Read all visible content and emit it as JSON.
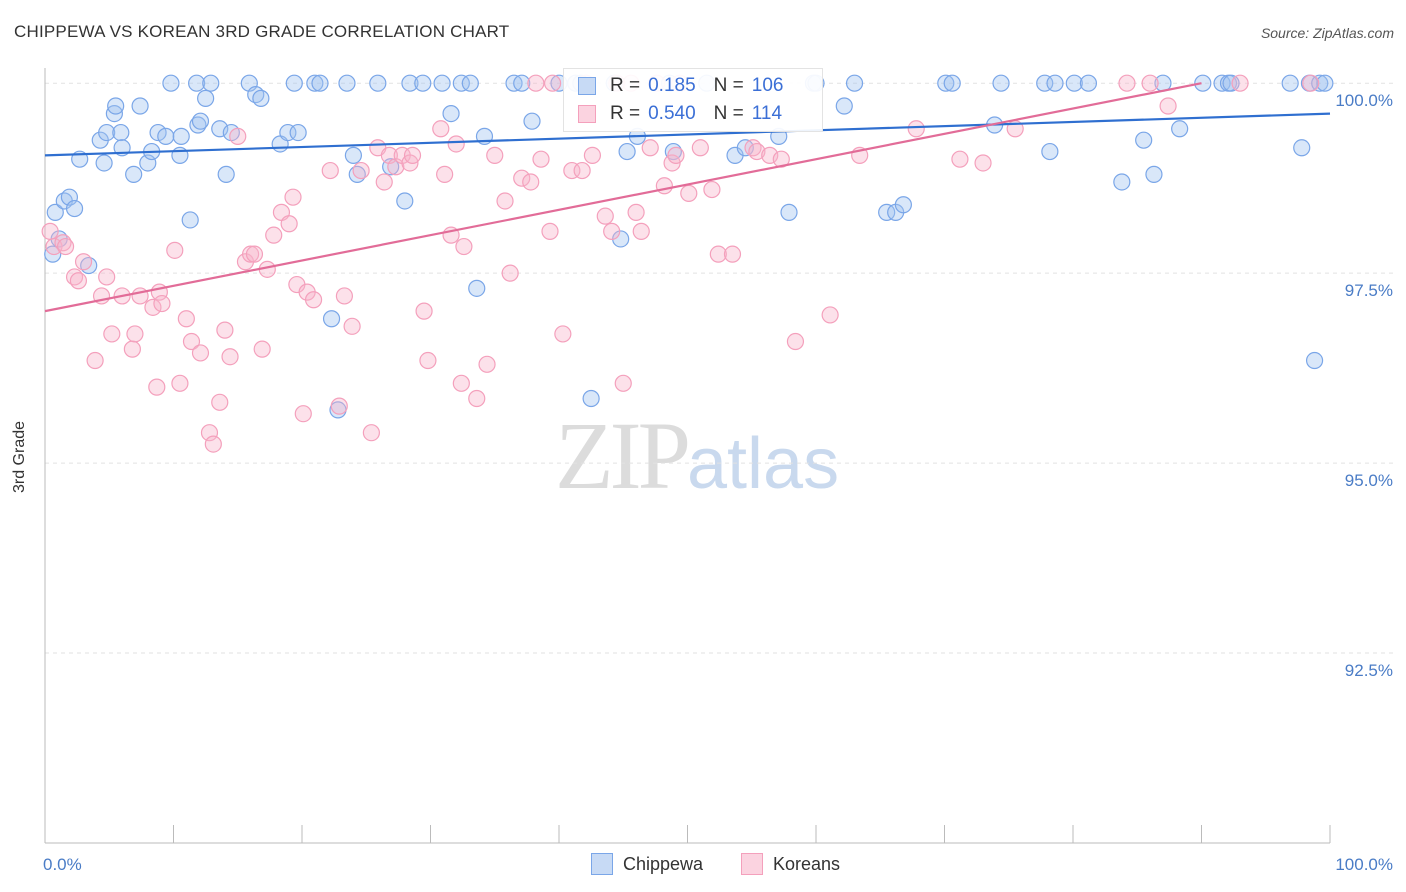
{
  "header": {
    "title": "CHIPPEWA VS KOREAN 3RD GRADE CORRELATION CHART",
    "source": "Source: ZipAtlas.com"
  },
  "watermark": {
    "zip": "ZIP",
    "atlas": "atlas"
  },
  "legend": {
    "r_label": "R =",
    "n_label": "N =",
    "rows": [
      {
        "r": "0.185",
        "n": "106",
        "color": "#7aa6e8"
      },
      {
        "r": "0.540",
        "n": "114",
        "color": "#f4a0bc"
      }
    ]
  },
  "bottom_legend": [
    {
      "label": "Chippewa",
      "color": "#7aa6e8"
    },
    {
      "label": "Koreans",
      "color": "#f4a0bc"
    }
  ],
  "chart_data": {
    "type": "scatter",
    "title": "CHIPPEWA VS KOREAN 3RD GRADE CORRELATION CHART",
    "xlabel": "",
    "ylabel": "3rd Grade",
    "x_tick_labels": [
      "0.0%",
      "100.0%"
    ],
    "y_tick_labels": [
      "100.0%",
      "97.5%",
      "95.0%",
      "92.5%"
    ],
    "y_ticks": [
      100.0,
      97.5,
      95.0,
      92.5
    ],
    "xlim": [
      0,
      100
    ],
    "ylim": [
      90.0,
      100.2
    ],
    "grid": true,
    "series": [
      {
        "name": "Chippewa",
        "color": "#7aa6e8",
        "trend": {
          "x": [
            0,
            100
          ],
          "y": [
            99.05,
            99.6
          ]
        },
        "points": [
          [
            0.6,
            97.75
          ],
          [
            0.8,
            98.3
          ],
          [
            1.1,
            97.95
          ],
          [
            1.5,
            98.45
          ],
          [
            1.9,
            98.5
          ],
          [
            2.3,
            98.35
          ],
          [
            2.7,
            99.0
          ],
          [
            3.4,
            97.6
          ],
          [
            4.3,
            99.25
          ],
          [
            4.6,
            98.95
          ],
          [
            4.8,
            99.35
          ],
          [
            5.4,
            99.6
          ],
          [
            5.5,
            99.7
          ],
          [
            5.9,
            99.35
          ],
          [
            6.0,
            99.15
          ],
          [
            6.9,
            98.8
          ],
          [
            7.4,
            99.7
          ],
          [
            8.0,
            98.95
          ],
          [
            8.3,
            99.1
          ],
          [
            8.8,
            99.35
          ],
          [
            9.4,
            99.3
          ],
          [
            9.8,
            100.0
          ],
          [
            10.5,
            99.05
          ],
          [
            10.6,
            99.3
          ],
          [
            11.3,
            98.2
          ],
          [
            11.8,
            100.0
          ],
          [
            11.9,
            99.45
          ],
          [
            12.1,
            99.5
          ],
          [
            12.5,
            99.8
          ],
          [
            12.9,
            100.0
          ],
          [
            13.6,
            99.4
          ],
          [
            14.1,
            98.8
          ],
          [
            14.5,
            99.35
          ],
          [
            15.9,
            100.0
          ],
          [
            16.4,
            99.85
          ],
          [
            16.8,
            99.8
          ],
          [
            18.3,
            99.2
          ],
          [
            18.9,
            99.35
          ],
          [
            19.4,
            100.0
          ],
          [
            19.7,
            99.35
          ],
          [
            21.0,
            100.0
          ],
          [
            21.4,
            100.0
          ],
          [
            22.3,
            96.9
          ],
          [
            22.8,
            95.7
          ],
          [
            23.5,
            100.0
          ],
          [
            24.0,
            99.05
          ],
          [
            24.3,
            98.8
          ],
          [
            25.9,
            100.0
          ],
          [
            26.9,
            98.9
          ],
          [
            28.0,
            98.45
          ],
          [
            28.4,
            100.0
          ],
          [
            29.4,
            100.0
          ],
          [
            30.9,
            100.0
          ],
          [
            31.6,
            99.6
          ],
          [
            32.4,
            100.0
          ],
          [
            33.1,
            100.0
          ],
          [
            33.6,
            97.3
          ],
          [
            34.2,
            99.3
          ],
          [
            36.5,
            100.0
          ],
          [
            37.1,
            100.0
          ],
          [
            37.9,
            99.5
          ],
          [
            40.0,
            100.0
          ],
          [
            41.3,
            100.0
          ],
          [
            41.7,
            100.0
          ],
          [
            42.5,
            95.85
          ],
          [
            44.3,
            100.0
          ],
          [
            44.8,
            97.95
          ],
          [
            45.3,
            99.1
          ],
          [
            46.1,
            99.3
          ],
          [
            48.6,
            100.0
          ],
          [
            48.9,
            99.1
          ],
          [
            51.5,
            100.0
          ],
          [
            53.7,
            99.05
          ],
          [
            54.5,
            99.15
          ],
          [
            57.1,
            99.3
          ],
          [
            57.9,
            98.3
          ],
          [
            59.8,
            100.0
          ],
          [
            60.0,
            100.0
          ],
          [
            62.2,
            99.7
          ],
          [
            63.0,
            100.0
          ],
          [
            65.5,
            98.3
          ],
          [
            66.2,
            98.3
          ],
          [
            66.8,
            98.4
          ],
          [
            70.1,
            100.0
          ],
          [
            70.6,
            100.0
          ],
          [
            73.9,
            99.45
          ],
          [
            74.4,
            100.0
          ],
          [
            77.8,
            100.0
          ],
          [
            78.2,
            99.1
          ],
          [
            78.6,
            100.0
          ],
          [
            80.1,
            100.0
          ],
          [
            81.2,
            100.0
          ],
          [
            83.8,
            98.7
          ],
          [
            85.5,
            99.25
          ],
          [
            86.3,
            98.8
          ],
          [
            87.0,
            100.0
          ],
          [
            88.3,
            99.4
          ],
          [
            90.1,
            100.0
          ],
          [
            91.6,
            100.0
          ],
          [
            92.1,
            100.0
          ],
          [
            92.3,
            100.0
          ],
          [
            96.9,
            100.0
          ],
          [
            97.8,
            99.15
          ],
          [
            98.4,
            100.0
          ],
          [
            98.8,
            96.35
          ],
          [
            99.2,
            100.0
          ],
          [
            99.6,
            100.0
          ]
        ]
      },
      {
        "name": "Koreans",
        "color": "#f4a0bc",
        "trend": {
          "x": [
            0,
            90
          ],
          "y": [
            97.0,
            100.0
          ]
        },
        "points": [
          [
            0.4,
            98.05
          ],
          [
            0.7,
            97.85
          ],
          [
            1.4,
            97.9
          ],
          [
            1.6,
            97.85
          ],
          [
            2.3,
            97.45
          ],
          [
            2.6,
            97.4
          ],
          [
            3.0,
            97.65
          ],
          [
            3.9,
            96.35
          ],
          [
            4.4,
            97.2
          ],
          [
            4.8,
            97.45
          ],
          [
            5.2,
            96.7
          ],
          [
            6.0,
            97.2
          ],
          [
            6.8,
            96.5
          ],
          [
            7.0,
            96.7
          ],
          [
            7.4,
            97.2
          ],
          [
            8.4,
            97.05
          ],
          [
            8.7,
            96.0
          ],
          [
            8.9,
            97.25
          ],
          [
            9.1,
            97.1
          ],
          [
            10.1,
            97.8
          ],
          [
            10.5,
            96.05
          ],
          [
            11.0,
            96.9
          ],
          [
            11.4,
            96.6
          ],
          [
            12.1,
            96.45
          ],
          [
            12.8,
            95.4
          ],
          [
            13.1,
            95.25
          ],
          [
            13.6,
            95.8
          ],
          [
            14.0,
            96.75
          ],
          [
            14.4,
            96.4
          ],
          [
            15.0,
            99.3
          ],
          [
            15.6,
            97.65
          ],
          [
            16.0,
            97.75
          ],
          [
            16.3,
            97.75
          ],
          [
            16.9,
            96.5
          ],
          [
            17.3,
            97.55
          ],
          [
            17.8,
            98.0
          ],
          [
            18.4,
            98.3
          ],
          [
            19.0,
            98.15
          ],
          [
            19.3,
            98.5
          ],
          [
            19.6,
            97.35
          ],
          [
            20.1,
            95.65
          ],
          [
            20.4,
            97.25
          ],
          [
            20.9,
            97.15
          ],
          [
            22.2,
            98.85
          ],
          [
            22.9,
            95.75
          ],
          [
            23.3,
            97.2
          ],
          [
            23.9,
            96.8
          ],
          [
            24.6,
            98.85
          ],
          [
            25.4,
            95.4
          ],
          [
            25.9,
            99.15
          ],
          [
            26.4,
            98.7
          ],
          [
            26.8,
            99.05
          ],
          [
            27.3,
            98.9
          ],
          [
            27.8,
            99.05
          ],
          [
            28.4,
            98.95
          ],
          [
            28.6,
            99.05
          ],
          [
            29.5,
            97.0
          ],
          [
            29.8,
            96.35
          ],
          [
            30.8,
            99.4
          ],
          [
            31.1,
            98.8
          ],
          [
            31.6,
            98.0
          ],
          [
            32.0,
            99.2
          ],
          [
            32.4,
            96.05
          ],
          [
            32.6,
            97.85
          ],
          [
            33.6,
            95.85
          ],
          [
            34.4,
            96.3
          ],
          [
            35.0,
            99.05
          ],
          [
            35.8,
            98.45
          ],
          [
            36.2,
            97.5
          ],
          [
            37.1,
            98.75
          ],
          [
            37.8,
            98.7
          ],
          [
            38.6,
            99.0
          ],
          [
            39.3,
            98.05
          ],
          [
            40.3,
            96.7
          ],
          [
            41.0,
            98.85
          ],
          [
            41.8,
            98.85
          ],
          [
            42.6,
            99.05
          ],
          [
            43.6,
            98.25
          ],
          [
            44.1,
            98.05
          ],
          [
            45.0,
            96.05
          ],
          [
            46.0,
            98.3
          ],
          [
            46.4,
            98.05
          ],
          [
            47.1,
            99.15
          ],
          [
            48.2,
            98.65
          ],
          [
            48.8,
            98.95
          ],
          [
            49.1,
            99.05
          ],
          [
            50.1,
            98.55
          ],
          [
            51.0,
            99.15
          ],
          [
            51.9,
            98.6
          ],
          [
            52.4,
            97.75
          ],
          [
            53.5,
            97.75
          ],
          [
            55.1,
            99.15
          ],
          [
            55.4,
            99.1
          ],
          [
            56.4,
            99.05
          ],
          [
            57.3,
            99.0
          ],
          [
            58.4,
            96.6
          ],
          [
            61.1,
            96.95
          ],
          [
            71.2,
            99.0
          ],
          [
            73.0,
            98.95
          ],
          [
            87.4,
            99.7
          ],
          [
            38.2,
            100.0
          ],
          [
            39.5,
            100.0
          ],
          [
            42.1,
            100.0
          ],
          [
            44.5,
            100.0
          ],
          [
            45.6,
            100.0
          ],
          [
            47.6,
            100.0
          ],
          [
            49.4,
            100.0
          ],
          [
            84.2,
            100.0
          ],
          [
            86.0,
            100.0
          ],
          [
            93.0,
            100.0
          ],
          [
            98.5,
            100.0
          ],
          [
            63.4,
            99.05
          ],
          [
            67.8,
            99.4
          ],
          [
            75.5,
            99.4
          ]
        ]
      }
    ]
  }
}
